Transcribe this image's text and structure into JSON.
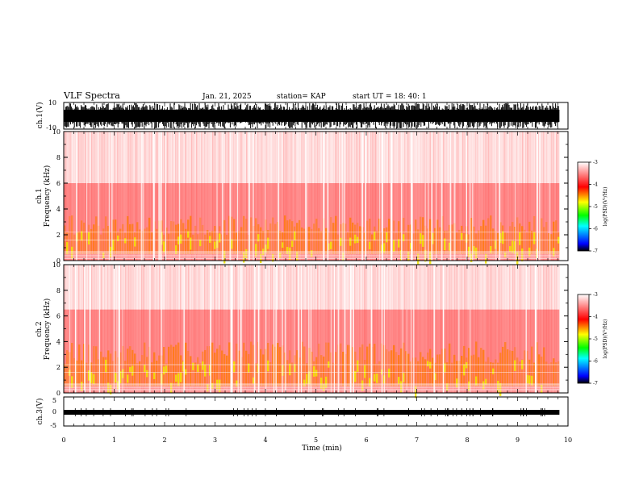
{
  "header": {
    "title": "VLF Spectra",
    "date": "Jan. 21, 2025",
    "station": "station= KAP",
    "start": "start  UT  =  18: 40: 1"
  },
  "chart_data": [
    {
      "type": "line",
      "panel": "ch1-waveform",
      "ylabel": "ch.1(V)",
      "ylim": [
        -10,
        10
      ],
      "ytick_labels": [
        "10",
        "-10"
      ],
      "xlim": [
        0,
        10
      ]
    },
    {
      "type": "heatmap",
      "panel": "ch1-spectrogram",
      "ylabel": "ch.1",
      "ylabel2": "Frequency  (kHz)",
      "ylim": [
        0,
        10
      ],
      "ytick_labels": [
        "0",
        "2",
        "4",
        "6",
        "8",
        "10"
      ],
      "xlim": [
        0,
        9.83
      ],
      "colorbar": {
        "label": "log(PSD)(V²/Hz)",
        "range": [
          -7,
          -3
        ],
        "tick_labels": [
          "-3",
          "-4",
          "-5",
          "-6",
          "-7"
        ],
        "colors": [
          "#ffffff",
          "#ff0000",
          "#ffff00",
          "#00ff00",
          "#00ffff",
          "#0000ff",
          "#000000"
        ]
      },
      "band_kHz": [
        0.5,
        3.5
      ]
    },
    {
      "type": "heatmap",
      "panel": "ch2-spectrogram",
      "ylabel": "ch.2",
      "ylabel2": "Frequency  (kHz)",
      "ylim": [
        0,
        10
      ],
      "ytick_labels": [
        "0",
        "2",
        "4",
        "6",
        "8",
        "10"
      ],
      "xlim": [
        0,
        9.83
      ],
      "colorbar": {
        "label": "log(PSD)(V²/Hz)",
        "range": [
          -7,
          -3
        ],
        "tick_labels": [
          "-3",
          "-4",
          "-5",
          "-6",
          "-7"
        ],
        "colors": [
          "#ffffff",
          "#ff0000",
          "#ffff00",
          "#00ff00",
          "#00ffff",
          "#0000ff",
          "#000000"
        ]
      },
      "band_kHz": [
        0.5,
        4.0
      ]
    },
    {
      "type": "line",
      "panel": "ch3-waveform",
      "ylabel": "ch.3(V)",
      "ylim": [
        -5,
        5
      ],
      "ytick_labels": [
        "5",
        "0",
        "-5"
      ],
      "xlim": [
        0,
        10
      ],
      "xlabel": "Time  (min)",
      "xtick_labels": [
        "0",
        "1",
        "2",
        "3",
        "4",
        "5",
        "6",
        "7",
        "8",
        "9",
        "10"
      ]
    }
  ]
}
